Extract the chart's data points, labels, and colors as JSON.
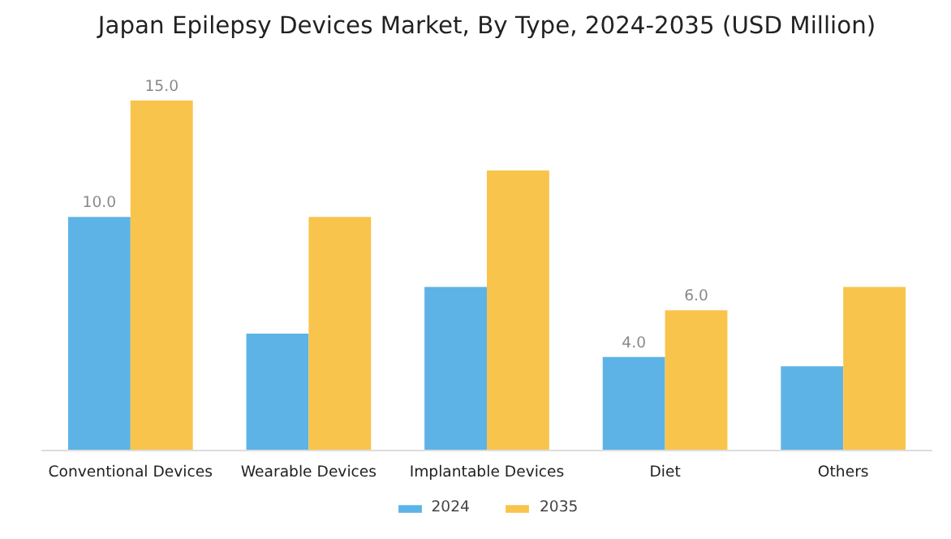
{
  "chart_data": {
    "type": "bar",
    "title": "Japan Epilepsy Devices Market, By Type, 2024-2035 (USD Million)",
    "categories": [
      "Conventional Devices",
      "Wearable Devices",
      "Implantable Devices",
      "Diet",
      "Others"
    ],
    "series": [
      {
        "name": "2024",
        "color": "#5db3e6",
        "values": [
          10.0,
          5.0,
          7.0,
          4.0,
          3.6
        ],
        "value_labels": [
          "10.0",
          null,
          null,
          "4.0",
          null
        ]
      },
      {
        "name": "2035",
        "color": "#f8c44c",
        "values": [
          15.0,
          10.0,
          12.0,
          6.0,
          7.0
        ],
        "value_labels": [
          "15.0",
          null,
          null,
          "6.0",
          null
        ]
      }
    ],
    "legend": "bottom"
  }
}
